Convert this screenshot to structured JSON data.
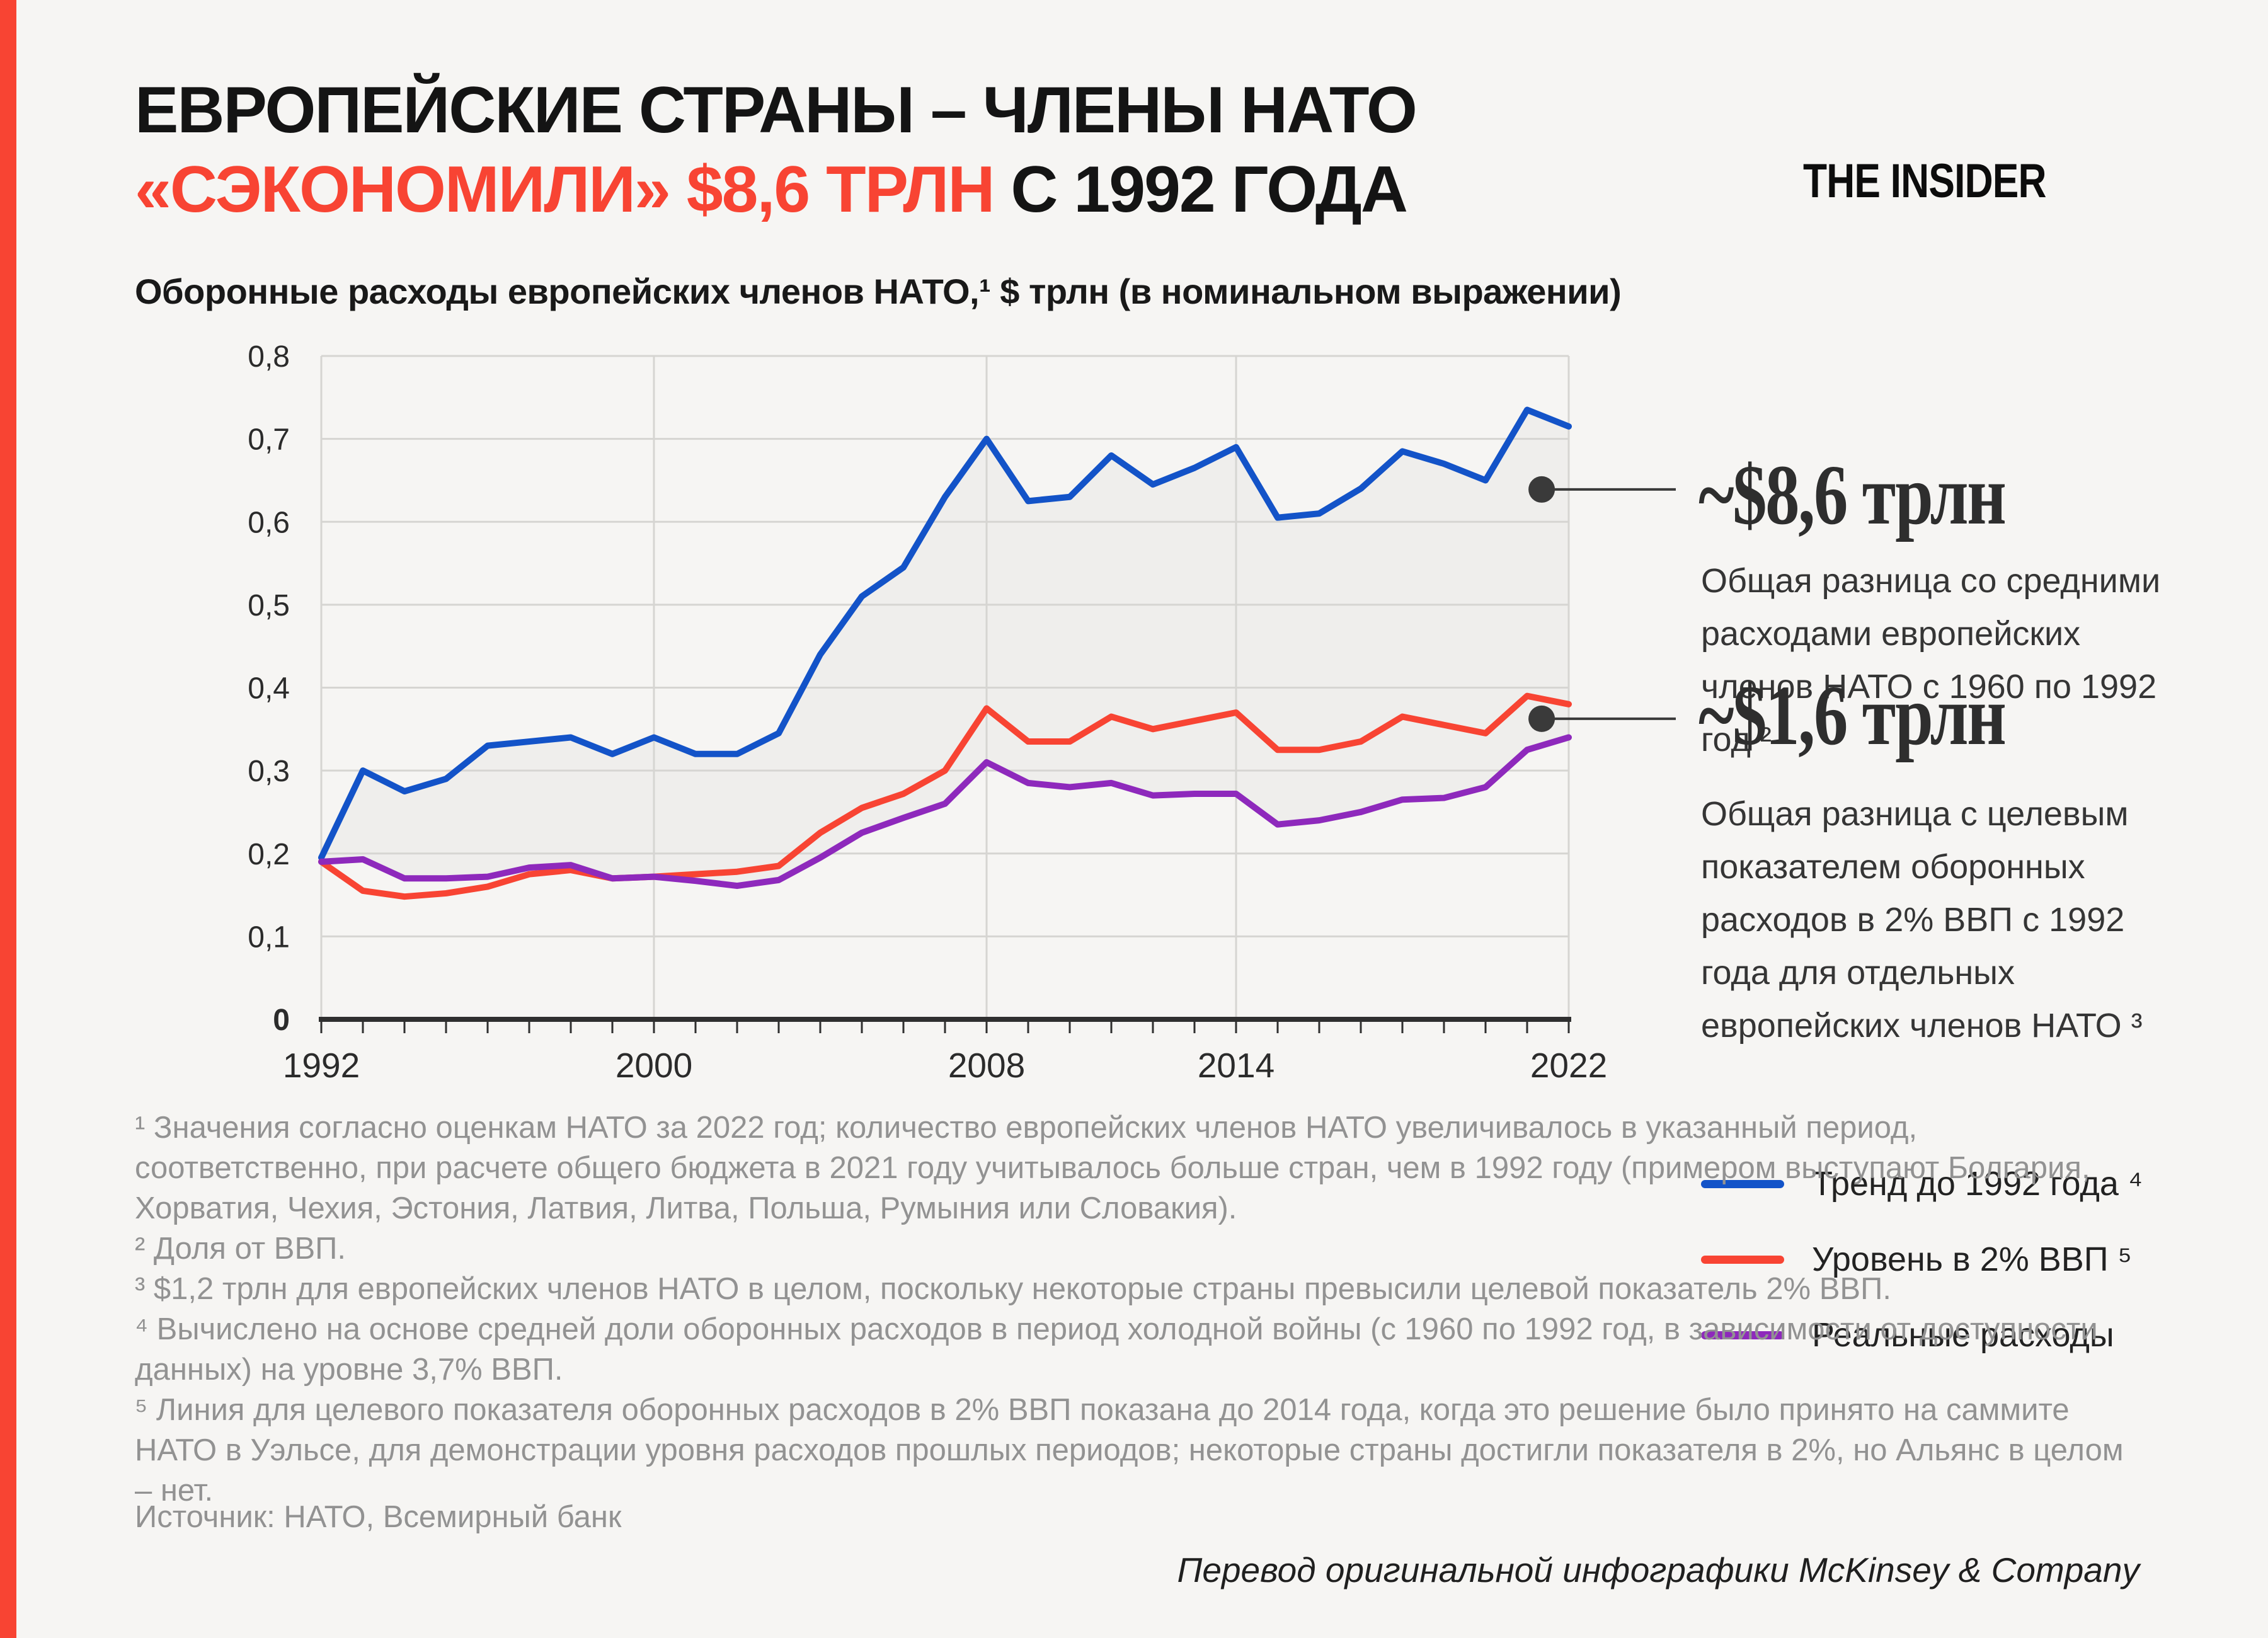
{
  "page": {
    "accent_color": "#f84433",
    "background": "#f6f5f3"
  },
  "header": {
    "title_line1": "ЕВРОПЕЙСКИЕ СТРАНЫ – ЧЛЕНЫ НАТО",
    "title_line2_red": "«СЭКОНОМИЛИ» $8,6 ТРЛН",
    "title_line2_black": " С 1992 ГОДА",
    "logo": "THE INSIDER",
    "subtitle": "Оборонные расходы европейских членов НАТО,¹ $ трлн (в номинальном выражении)"
  },
  "chart_data": {
    "type": "line",
    "x_start": 1992,
    "x_end": 2022,
    "x_ticks_labeled": [
      1992,
      2000,
      2008,
      2014,
      2022
    ],
    "ylim": [
      0,
      0.8
    ],
    "y_step": 0.1,
    "y_tick_labels": [
      "0",
      "0,1",
      "0,2",
      "0,3",
      "0,4",
      "0,5",
      "0,6",
      "0,7",
      "0,8"
    ],
    "grid": true,
    "legend_position": "right-bottom",
    "series": [
      {
        "name": "Тренд до 1992 года ⁴",
        "color": "#1353c8",
        "values": [
          0.195,
          0.3,
          0.275,
          0.29,
          0.33,
          0.335,
          0.34,
          0.32,
          0.34,
          0.32,
          0.32,
          0.345,
          0.44,
          0.51,
          0.545,
          0.63,
          0.7,
          0.625,
          0.63,
          0.68,
          0.645,
          0.665,
          0.69,
          0.605,
          0.61,
          0.64,
          0.685,
          0.67,
          0.65,
          0.735,
          0.715
        ]
      },
      {
        "name": "Уровень в 2% ВВП ⁵",
        "color": "#f84433",
        "values": [
          0.19,
          0.155,
          0.148,
          0.152,
          0.16,
          0.175,
          0.18,
          0.17,
          0.172,
          0.175,
          0.178,
          0.185,
          0.225,
          0.255,
          0.272,
          0.3,
          0.375,
          0.335,
          0.335,
          0.365,
          0.35,
          0.36,
          0.37,
          0.325,
          0.325,
          0.335,
          0.365,
          0.355,
          0.345,
          0.39,
          0.38
        ]
      },
      {
        "name": "Реальные расходы",
        "color": "#8e29bc",
        "values": [
          0.19,
          0.193,
          0.17,
          0.17,
          0.172,
          0.183,
          0.186,
          0.17,
          0.172,
          0.167,
          0.161,
          0.168,
          0.195,
          0.225,
          0.243,
          0.26,
          0.31,
          0.285,
          0.28,
          0.285,
          0.27,
          0.272,
          0.272,
          0.235,
          0.24,
          0.25,
          0.265,
          0.267,
          0.28,
          0.325,
          0.34
        ]
      }
    ]
  },
  "annotations": [
    {
      "big": "~$8,6 трлн",
      "desc": "Общая разница со средними расходами европейских членов НАТО с 1960 по 1992 год ²",
      "anchor_year": 2021.35,
      "anchor_value": 0.639
    },
    {
      "big": "~$1,6 трлн",
      "desc": "Общая разница  с целевым показателем оборонных расходов в 2% ВВП с 1992 года для отдельных европейских членов НАТО ³",
      "anchor_year": 2021.35,
      "anchor_value": 0.3625
    }
  ],
  "footnotes": [
    "¹ Значения согласно оценкам НАТО за 2022 год; количество европейских членов НАТО увеличивалось в указанный период, соответственно, при расчете общего бюджета в 2021 году учитывалось больше стран, чем в 1992 году (примером выступают Болгария, Хорватия, Чехия, Эстония, Латвия, Литва, Польша, Румыния или Словакия).",
    "² Доля от ВВП.",
    "³ $1,2 трлн для европейских членов НАТО в целом, поскольку некоторые страны превысили целевой показатель 2% ВВП.",
    "⁴ Вычислено на основе средней доли оборонных расходов в период холодной войны (с 1960 по 1992 год, в зависимости от доступности данных) на уровне 3,7% ВВП.",
    "⁵ Линия для целевого показателя оборонных расходов в 2% ВВП показана до 2014 года, когда это решение было принято на саммите НАТО в Уэльсе, для демонстрации уровня расходов прошлых периодов; некоторые страны достигли показателя в 2%, но Альянс в целом – нет."
  ],
  "source": "Источник: НАТО, Всемирный банк",
  "credit": "Перевод оригинальной инфографики McKinsey & Company"
}
